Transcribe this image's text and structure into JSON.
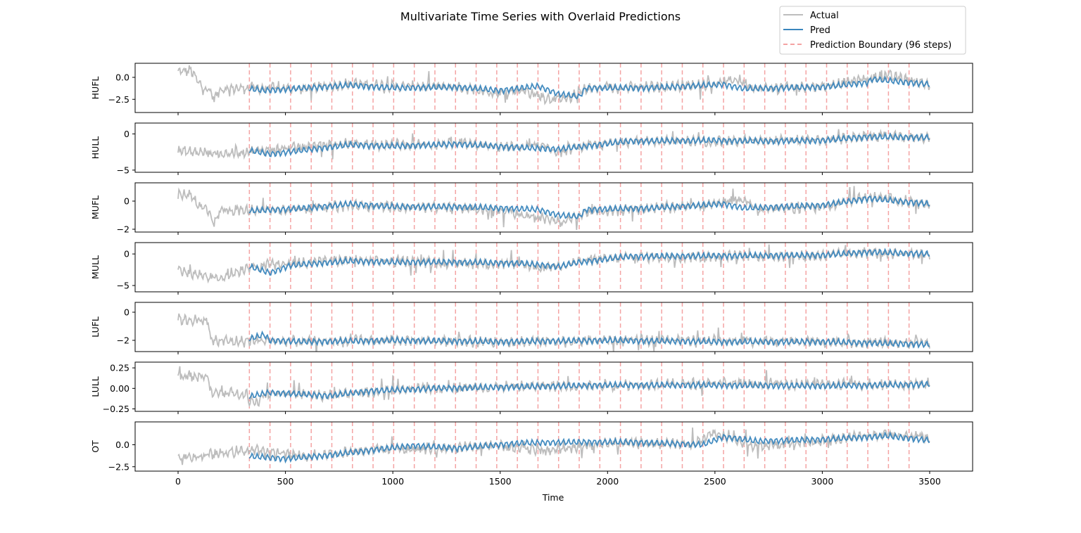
{
  "chart_data": {
    "type": "line",
    "title": "Multivariate Time Series with Overlaid Predictions",
    "xlabel": "Time",
    "xlim": [
      -200,
      3700
    ],
    "xticks": [
      0,
      500,
      1000,
      1500,
      2000,
      2500,
      3000,
      3500
    ],
    "legend": {
      "placement": "top-right",
      "entries": [
        "Actual",
        "Pred",
        "Prediction Boundary (96 steps)"
      ]
    },
    "colors": {
      "actual": "#bdbdbd",
      "pred": "#3a86bd",
      "boundary": "#f4a3a3"
    },
    "prediction_start": 332,
    "series_end": 3500,
    "boundary_step": 96,
    "boundaries": [
      332,
      428,
      524,
      620,
      716,
      812,
      908,
      1004,
      1100,
      1196,
      1292,
      1388,
      1484,
      1580,
      1676,
      1772,
      1868,
      1964,
      2060,
      2156,
      2252,
      2348,
      2444,
      2540,
      2636,
      2732,
      2828,
      2924,
      3020,
      3116,
      3212,
      3308,
      3404
    ],
    "subplots": [
      {
        "ylabel": "HUFL",
        "ylim": [
          -4.0,
          1.6
        ],
        "yticks": [
          0.0,
          -2.5
        ],
        "ytick_labels": [
          "0.0",
          "−2.5"
        ],
        "actual_trend": [
          [
            0,
            0.6
          ],
          [
            60,
            0.8
          ],
          [
            100,
            -0.8
          ],
          [
            140,
            -1.4
          ],
          [
            170,
            -2.4
          ],
          [
            200,
            -1.3
          ],
          [
            330,
            -1.2
          ],
          [
            600,
            -1.3
          ],
          [
            800,
            -0.7
          ],
          [
            1000,
            -1.0
          ],
          [
            1300,
            -1.1
          ],
          [
            1500,
            -1.8
          ],
          [
            1600,
            -1.4
          ],
          [
            1700,
            -2.3
          ],
          [
            1800,
            -2.6
          ],
          [
            1900,
            -1.3
          ],
          [
            2200,
            -1.1
          ],
          [
            2500,
            -0.8
          ],
          [
            2600,
            -0.2
          ],
          [
            2700,
            -1.3
          ],
          [
            3000,
            -1.0
          ],
          [
            3200,
            -0.2
          ],
          [
            3300,
            0.2
          ],
          [
            3500,
            -0.8
          ]
        ],
        "pred_trend": [
          [
            332,
            -1.3
          ],
          [
            400,
            -1.5
          ],
          [
            600,
            -1.2
          ],
          [
            800,
            -0.9
          ],
          [
            1000,
            -1.2
          ],
          [
            1300,
            -1.1
          ],
          [
            1500,
            -1.5
          ],
          [
            1676,
            -1.0
          ],
          [
            1772,
            -1.9
          ],
          [
            1868,
            -2.2
          ],
          [
            1900,
            -1.2
          ],
          [
            2200,
            -1.2
          ],
          [
            2540,
            -0.8
          ],
          [
            2636,
            -1.3
          ],
          [
            3000,
            -1.1
          ],
          [
            3212,
            -0.6
          ],
          [
            3230,
            -0.2
          ],
          [
            3500,
            -0.8
          ]
        ]
      },
      {
        "ylabel": "HULL",
        "ylim": [
          -5.3,
          1.5
        ],
        "yticks": [
          0,
          -5
        ],
        "ytick_labels": [
          "0",
          "−5"
        ],
        "actual_trend": [
          [
            0,
            -2.4
          ],
          [
            140,
            -2.6
          ],
          [
            200,
            -2.8
          ],
          [
            330,
            -2.4
          ],
          [
            600,
            -1.8
          ],
          [
            800,
            -1.3
          ],
          [
            1000,
            -1.5
          ],
          [
            1300,
            -1.4
          ],
          [
            1500,
            -1.8
          ],
          [
            1700,
            -1.8
          ],
          [
            1772,
            -2.5
          ],
          [
            1868,
            -1.8
          ],
          [
            2100,
            -1.0
          ],
          [
            2500,
            -1.0
          ],
          [
            3000,
            -0.9
          ],
          [
            3212,
            -0.3
          ],
          [
            3500,
            -0.5
          ]
        ],
        "pred_trend": [
          [
            332,
            -2.3
          ],
          [
            428,
            -2.8
          ],
          [
            600,
            -2.2
          ],
          [
            800,
            -1.5
          ],
          [
            1000,
            -1.7
          ],
          [
            1300,
            -1.4
          ],
          [
            1600,
            -1.9
          ],
          [
            1772,
            -2.1
          ],
          [
            1868,
            -1.8
          ],
          [
            2100,
            -1.0
          ],
          [
            2500,
            -0.9
          ],
          [
            2700,
            -1.0
          ],
          [
            3000,
            -0.9
          ],
          [
            3212,
            -0.4
          ],
          [
            3500,
            -0.5
          ]
        ]
      },
      {
        "ylabel": "MUFL",
        "ylim": [
          -2.2,
          1.3
        ],
        "yticks": [
          0,
          -2
        ],
        "ytick_labels": [
          "0",
          "−2"
        ],
        "actual_trend": [
          [
            0,
            0.4
          ],
          [
            60,
            0.5
          ],
          [
            100,
            -0.4
          ],
          [
            140,
            -0.6
          ],
          [
            170,
            -1.6
          ],
          [
            200,
            -0.6
          ],
          [
            330,
            -0.7
          ],
          [
            600,
            -0.5
          ],
          [
            800,
            -0.3
          ],
          [
            1000,
            -0.4
          ],
          [
            1300,
            -0.5
          ],
          [
            1500,
            -0.7
          ],
          [
            1700,
            -1.2
          ],
          [
            1800,
            -1.5
          ],
          [
            1900,
            -0.8
          ],
          [
            2200,
            -0.5
          ],
          [
            2500,
            -0.2
          ],
          [
            2636,
            0.1
          ],
          [
            2700,
            -0.6
          ],
          [
            3000,
            -0.4
          ],
          [
            3212,
            0.3
          ],
          [
            3350,
            0.1
          ],
          [
            3500,
            -0.3
          ]
        ],
        "pred_trend": [
          [
            332,
            -0.7
          ],
          [
            600,
            -0.5
          ],
          [
            800,
            -0.2
          ],
          [
            1000,
            -0.4
          ],
          [
            1300,
            -0.4
          ],
          [
            1500,
            -0.5
          ],
          [
            1676,
            -0.6
          ],
          [
            1772,
            -1.0
          ],
          [
            1868,
            -1.1
          ],
          [
            1900,
            -0.6
          ],
          [
            2200,
            -0.5
          ],
          [
            2540,
            -0.2
          ],
          [
            2636,
            -0.5
          ],
          [
            3000,
            -0.3
          ],
          [
            3212,
            0.2
          ],
          [
            3500,
            -0.2
          ]
        ]
      },
      {
        "ylabel": "MULL",
        "ylim": [
          -6.0,
          1.8
        ],
        "yticks": [
          0,
          -5
        ],
        "ytick_labels": [
          "0",
          "−5"
        ],
        "actual_trend": [
          [
            0,
            -2.8
          ],
          [
            200,
            -3.8
          ],
          [
            330,
            -2.0
          ],
          [
            600,
            -1.3
          ],
          [
            800,
            -1.0
          ],
          [
            1000,
            -1.2
          ],
          [
            1300,
            -1.4
          ],
          [
            1600,
            -1.6
          ],
          [
            1700,
            -2.2
          ],
          [
            1868,
            -1.2
          ],
          [
            2100,
            -0.5
          ],
          [
            2500,
            -0.4
          ],
          [
            3000,
            -0.3
          ],
          [
            3212,
            0.2
          ],
          [
            3500,
            0.0
          ]
        ],
        "pred_trend": [
          [
            332,
            -2.0
          ],
          [
            428,
            -3.0
          ],
          [
            524,
            -1.8
          ],
          [
            800,
            -1.1
          ],
          [
            1000,
            -1.3
          ],
          [
            1300,
            -1.3
          ],
          [
            1600,
            -1.5
          ],
          [
            1772,
            -2.0
          ],
          [
            1868,
            -1.3
          ],
          [
            2100,
            -0.4
          ],
          [
            2500,
            -0.3
          ],
          [
            3000,
            -0.2
          ],
          [
            3212,
            0.3
          ],
          [
            3500,
            0.0
          ]
        ]
      },
      {
        "ylabel": "LUFL",
        "ylim": [
          -2.8,
          0.7
        ],
        "yticks": [
          0,
          -2
        ],
        "ytick_labels": [
          "0",
          "−2"
        ],
        "actual_trend": [
          [
            0,
            -0.5
          ],
          [
            140,
            -0.6
          ],
          [
            150,
            -2.0
          ],
          [
            300,
            -2.1
          ],
          [
            330,
            -2.0
          ],
          [
            600,
            -2.1
          ],
          [
            1000,
            -2.0
          ],
          [
            1500,
            -2.1
          ],
          [
            2000,
            -2.0
          ],
          [
            2500,
            -2.0
          ],
          [
            3000,
            -2.1
          ],
          [
            3500,
            -2.2
          ]
        ],
        "pred_trend": [
          [
            332,
            -1.9
          ],
          [
            400,
            -1.6
          ],
          [
            428,
            -2.0
          ],
          [
            600,
            -2.1
          ],
          [
            1000,
            -2.0
          ],
          [
            1500,
            -2.1
          ],
          [
            2000,
            -2.0
          ],
          [
            2500,
            -2.1
          ],
          [
            3000,
            -2.1
          ],
          [
            3500,
            -2.3
          ]
        ]
      },
      {
        "ylabel": "LULL",
        "ylim": [
          -0.28,
          0.32
        ],
        "yticks": [
          0.25,
          0.0,
          -0.25
        ],
        "ytick_labels": [
          "0.25",
          "0.00",
          "−0.25"
        ],
        "actual_trend": [
          [
            0,
            0.15
          ],
          [
            140,
            0.15
          ],
          [
            150,
            -0.06
          ],
          [
            320,
            -0.06
          ],
          [
            330,
            -0.2
          ],
          [
            420,
            -0.05
          ],
          [
            700,
            -0.09
          ],
          [
            900,
            -0.04
          ],
          [
            1200,
            0.0
          ],
          [
            1500,
            0.02
          ],
          [
            2000,
            0.04
          ],
          [
            2500,
            0.06
          ],
          [
            3000,
            0.05
          ],
          [
            3500,
            0.05
          ]
        ],
        "pred_trend": [
          [
            332,
            -0.1
          ],
          [
            428,
            -0.05
          ],
          [
            700,
            -0.09
          ],
          [
            900,
            -0.03
          ],
          [
            1200,
            0.0
          ],
          [
            1600,
            0.02
          ],
          [
            2000,
            0.04
          ],
          [
            2500,
            0.04
          ],
          [
            3000,
            0.03
          ],
          [
            3500,
            0.05
          ]
        ]
      },
      {
        "ylabel": "OT",
        "ylim": [
          -3.0,
          2.6
        ],
        "yticks": [
          0.0,
          -2.5
        ],
        "ytick_labels": [
          "0.0",
          "−2.5"
        ],
        "actual_trend": [
          [
            0,
            -1.6
          ],
          [
            330,
            -0.6
          ],
          [
            600,
            -1.3
          ],
          [
            900,
            -0.5
          ],
          [
            1200,
            -0.5
          ],
          [
            1300,
            -0.4
          ],
          [
            1500,
            0.0
          ],
          [
            1700,
            -0.7
          ],
          [
            2000,
            0.2
          ],
          [
            2400,
            0.1
          ],
          [
            2500,
            1.3
          ],
          [
            2700,
            -0.2
          ],
          [
            3000,
            0.5
          ],
          [
            3300,
            1.2
          ],
          [
            3500,
            0.8
          ]
        ],
        "pred_trend": [
          [
            332,
            -1.3
          ],
          [
            500,
            -1.6
          ],
          [
            700,
            -1.2
          ],
          [
            900,
            -0.6
          ],
          [
            1100,
            -0.1
          ],
          [
            1300,
            -0.4
          ],
          [
            1600,
            0.2
          ],
          [
            1868,
            0.3
          ],
          [
            2100,
            0.3
          ],
          [
            2444,
            0.0
          ],
          [
            2540,
            0.9
          ],
          [
            2700,
            0.4
          ],
          [
            3000,
            0.6
          ],
          [
            3300,
            1.0
          ],
          [
            3500,
            0.5
          ]
        ]
      }
    ]
  }
}
